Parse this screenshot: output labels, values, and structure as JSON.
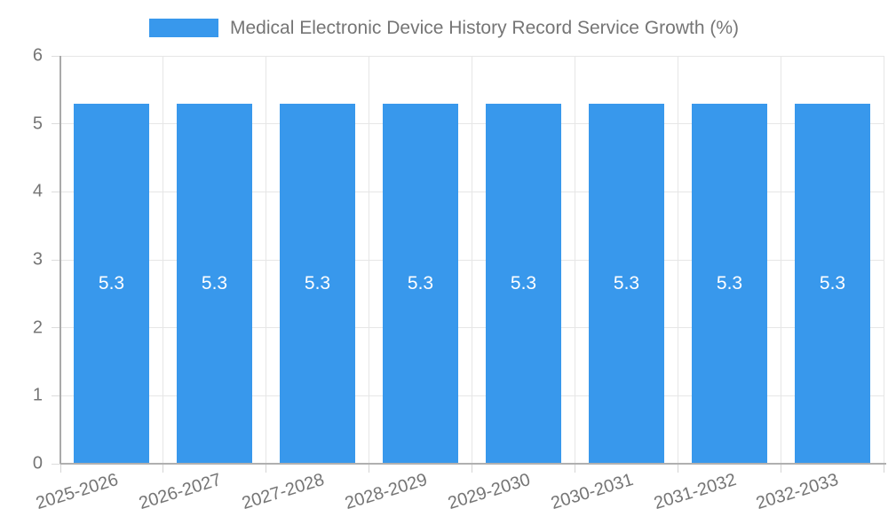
{
  "chart_data": {
    "type": "bar",
    "title": "Medical Electronic Device History Record Service Growth (%)",
    "categories": [
      "2025-2026",
      "2026-2027",
      "2027-2028",
      "2028-2029",
      "2029-2030",
      "2030-2031",
      "2031-2032",
      "2032-2033"
    ],
    "values": [
      5.3,
      5.3,
      5.3,
      5.3,
      5.3,
      5.3,
      5.3,
      5.3
    ],
    "value_labels": [
      "5.3",
      "5.3",
      "5.3",
      "5.3",
      "5.3",
      "5.3",
      "5.3",
      "5.3"
    ],
    "xlabel": "",
    "ylabel": "",
    "ylim": [
      0,
      6
    ],
    "yticks": [
      0,
      1,
      2,
      3,
      4,
      5,
      6
    ],
    "grid": true,
    "legend_position": "top",
    "colors": {
      "bar": "#3898ec",
      "bar_value_label": "#ffffff",
      "axis_text": "#757575",
      "grid_line": "#e6e6e6",
      "axis_line": "#b0b0b0"
    }
  }
}
